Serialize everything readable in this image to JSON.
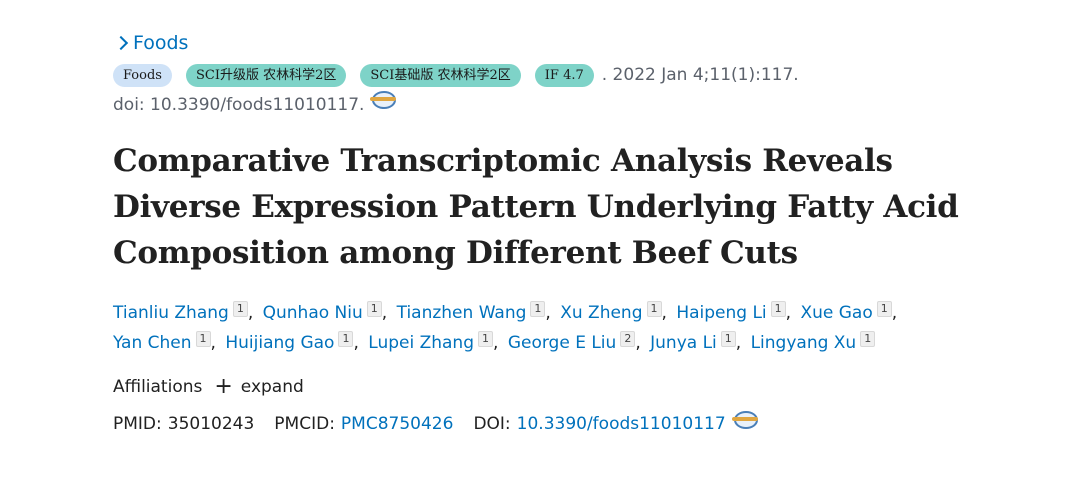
{
  "journal": {
    "link_label": "Foods"
  },
  "tags": [
    {
      "label": "Foods",
      "kind": "journal"
    },
    {
      "label": "SCI升级版 农林科学2区",
      "kind": "sci"
    },
    {
      "label": "SCI基础版 农林科学2区",
      "kind": "sci"
    },
    {
      "label": "IF 4.7",
      "kind": "sci"
    }
  ],
  "citation": ". 2022 Jan 4;11(1):117.",
  "doi_line": "doi: 10.3390/foods11010117.",
  "title": "Comparative Transcriptomic Analysis Reveals Diverse Expression Pattern Underlying Fatty Acid Composition among Different Beef Cuts",
  "authors": [
    {
      "name": "Tianliu Zhang",
      "aff": "1"
    },
    {
      "name": "Qunhao Niu",
      "aff": "1"
    },
    {
      "name": "Tianzhen Wang",
      "aff": "1"
    },
    {
      "name": "Xu Zheng",
      "aff": "1"
    },
    {
      "name": "Haipeng Li",
      "aff": "1"
    },
    {
      "name": "Xue Gao",
      "aff": "1"
    },
    {
      "name": "Yan Chen",
      "aff": "1"
    },
    {
      "name": "Huijiang Gao",
      "aff": "1"
    },
    {
      "name": "Lupei Zhang",
      "aff": "1"
    },
    {
      "name": "George E Liu",
      "aff": "2"
    },
    {
      "name": "Junya Li",
      "aff": "1"
    },
    {
      "name": "Lingyang Xu",
      "aff": "1"
    }
  ],
  "affiliations": {
    "label": "Affiliations",
    "expand_label": "expand",
    "expand_icon": "+"
  },
  "ids": {
    "pmid_label": "PMID:",
    "pmid": "35010243",
    "pmcid_label": "PMCID:",
    "pmcid": "PMC8750426",
    "doi_label": "DOI:",
    "doi": "10.3390/foods11010117"
  },
  "colors": {
    "link": "#0071bc",
    "journal_tag": "#cfe2f7",
    "sci_tag": "#7ed3c8",
    "muted": "#5b616b"
  },
  "icons": {
    "journal_chevron": "chevron-right-icon",
    "doi_globe": "globe-link-icon"
  }
}
